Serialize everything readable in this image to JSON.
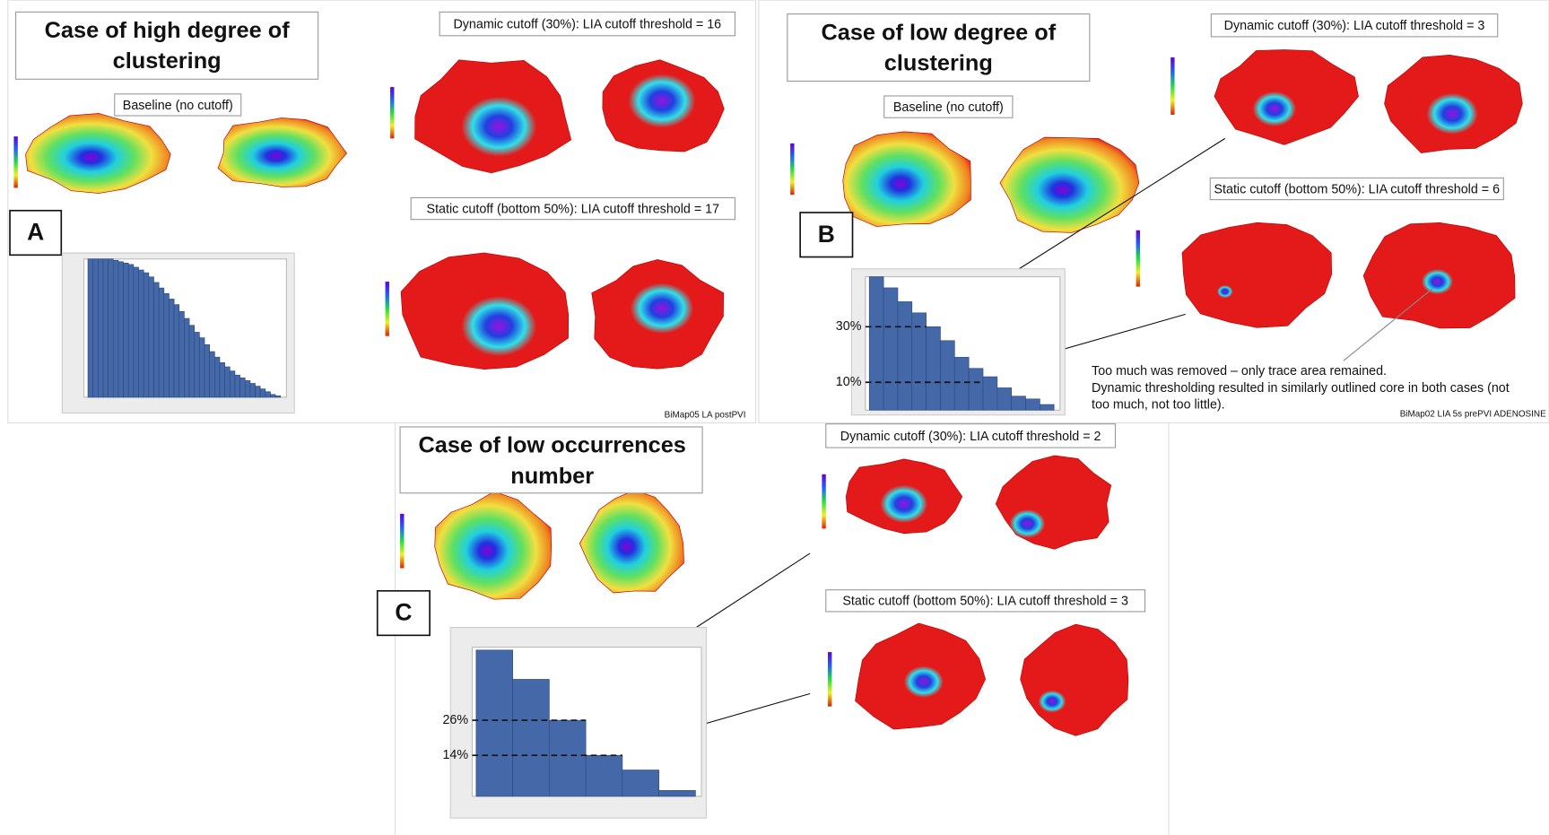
{
  "panels": [
    {
      "label": "A",
      "title": [
        "Case of high degree of",
        "clustering"
      ],
      "baseline": "Baseline (no cutoff)",
      "dynamic": "Dynamic cutoff (30%): LIA cutoff threshold = 16",
      "static": "Static cutoff (bottom 50%): LIA cutoff threshold = 17",
      "footer": "BiMap05 LA postPVI",
      "histogram": {
        "ylim": [
          0,
          100
        ],
        "values": [
          100,
          100,
          100,
          100,
          100,
          99,
          98,
          97,
          96,
          94,
          92,
          90,
          87,
          83,
          79,
          75,
          71,
          67,
          62,
          57,
          52,
          47,
          43,
          38,
          33,
          29,
          25,
          22,
          19,
          16,
          14,
          12,
          10,
          8,
          6,
          4,
          2,
          1
        ]
      }
    },
    {
      "label": "B",
      "title": [
        "Case of low degree of",
        "clustering"
      ],
      "baseline": "Baseline (no cutoff)",
      "dynamic": "Dynamic cutoff (30%): LIA cutoff threshold = 3",
      "static": "Static cutoff (bottom 50%): LIA cutoff threshold = 6",
      "footer": "BiMap02 LIA 5s prePVI ADENOSINE",
      "note": [
        "Too much was removed – only trace area remained.",
        "Dynamic thresholding resulted in similarly outlined core in both cases (not",
        "too much, not too little)."
      ],
      "histogram": {
        "ylim": [
          0,
          48
        ],
        "values": [
          48,
          44,
          39,
          35,
          30,
          25,
          19,
          15,
          12,
          8,
          5,
          4,
          2
        ],
        "markers": [
          {
            "value": 30,
            "label": "30%"
          },
          {
            "value": 10,
            "label": "10%"
          }
        ]
      }
    },
    {
      "label": "C",
      "title": [
        "Case of low occurrences",
        "number"
      ],
      "dynamic": "Dynamic cutoff (30%): LIA cutoff threshold = 2",
      "static": "Static cutoff (bottom 50%): LIA cutoff threshold = 3",
      "histogram": {
        "ylim": [
          0,
          51
        ],
        "values": [
          50,
          40,
          26,
          14,
          9,
          2
        ],
        "markers": [
          {
            "value": 26,
            "label": "26%"
          },
          {
            "value": 14,
            "label": "14%"
          }
        ]
      }
    }
  ]
}
